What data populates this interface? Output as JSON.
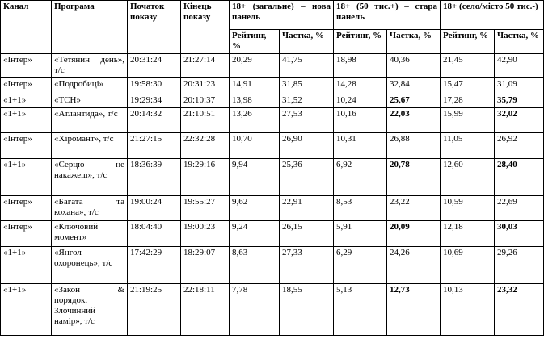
{
  "table": {
    "header": [
      "Канал",
      "Програма",
      "Початок показу",
      "Кінець показу",
      "18+ (загальне) – нова панель",
      "18+ (50 тис.+) – стара панель",
      "18+ (село/місто 50 тис.-)"
    ],
    "subheader": [
      "Рейтинг, %",
      "Частка, %",
      "Рейтинг, %",
      "Частка, %",
      "Рейтинг, %",
      "Частка, %"
    ],
    "rows": [
      [
        "«Інтер»",
        "«Тетянин день», т/с",
        "20:31:24",
        "21:27:14",
        "20,29",
        "41,75",
        "18,98",
        "40,36",
        "21,45",
        "42,90"
      ],
      [
        "«Інтер»",
        "«Подробиці»",
        "19:58:30",
        "20:31:23",
        "14,91",
        "31,85",
        "14,28",
        "32,84",
        "15,47",
        "31,09"
      ],
      [
        "«1+1»",
        "«ТСН»",
        "19:29:34",
        "20:10:37",
        "13,98",
        "31,52",
        "10,24",
        "25,67",
        "17,28",
        "35,79"
      ],
      [
        "«1+1»",
        "«Атлантида», т/с",
        "20:14:32",
        "21:10:51",
        "13,26",
        "27,53",
        "10,16",
        "22,03",
        "15,99",
        "32,02"
      ],
      [
        "«Інтер»",
        "«Хіромант», т/с",
        "21:27:15",
        "22:32:28",
        "10,70",
        "26,90",
        "10,31",
        "26,88",
        "11,05",
        "26,92"
      ],
      [
        "«1+1»",
        "«Серцю не накажеш», т/с",
        "18:36:39",
        "19:29:16",
        "9,94",
        "25,36",
        "6,92",
        "20,78",
        "12,60",
        "28,40"
      ],
      [
        "«Інтер»",
        "«Багата та кохана», т/с",
        "19:00:24",
        "19:55:27",
        "9,62",
        "22,91",
        "8,53",
        "23,22",
        "10,59",
        "22,69"
      ],
      [
        "«Інтер»",
        "«Ключовий момент»",
        "18:04:40",
        "19:00:23",
        "9,24",
        "26,15",
        "5,91",
        "20,09",
        "12,18",
        "30,03"
      ],
      [
        "«1+1»",
        "«Янгол-охоронець», т/с",
        "17:42:29",
        "18:29:07",
        "8,63",
        "27,33",
        "6,29",
        "24,26",
        "10,69",
        "29,26"
      ],
      [
        "«1+1»",
        "«Закон & порядок. Злочинний намір», т/с",
        "21:19:25",
        "22:18:11",
        "7,78",
        "18,55",
        "5,13",
        "12,73",
        "10,13",
        "23,32"
      ]
    ]
  }
}
